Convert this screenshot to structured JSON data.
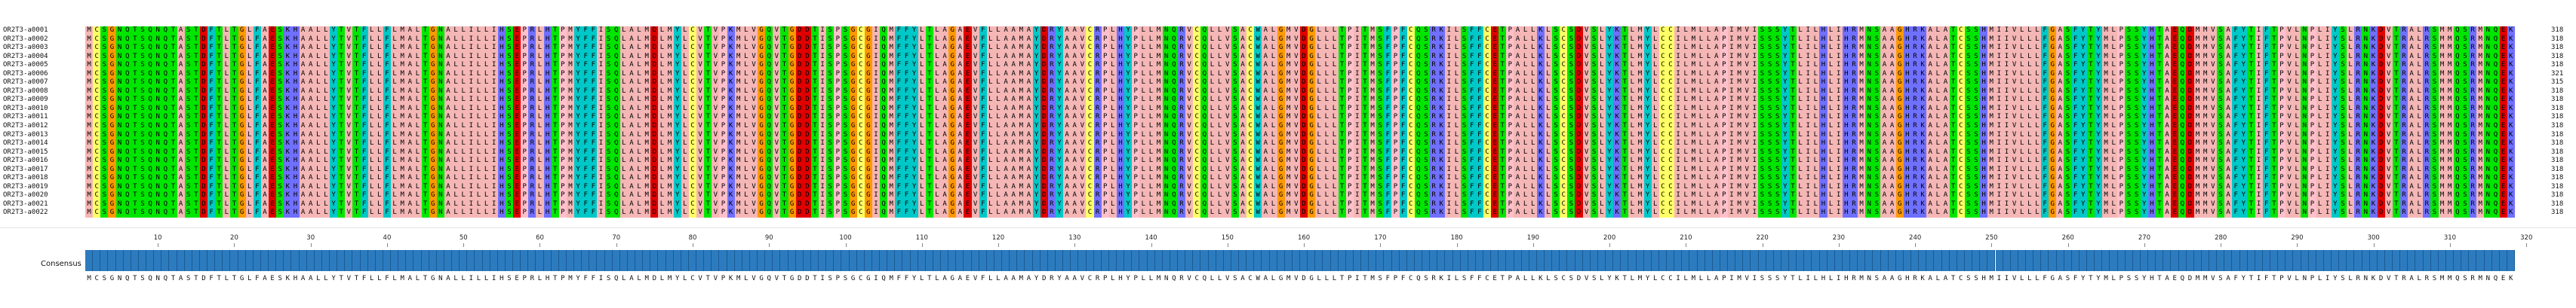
{
  "app": {
    "colors": {
      "hydrophobic": "#f5b6b6",
      "aromatic": "#00c8c8",
      "acidic": "#e00000",
      "basic": "#7070ff",
      "polar": "#00e600",
      "cysteine": "#ffff66",
      "glycine": "#ff9900",
      "proline": "#ffc0cb",
      "gap": "#ffffff",
      "bar": "#2c7bbf"
    }
  },
  "alignment": {
    "names": [
      "OR2T3-a0001",
      "OR2T3-a0002",
      "OR2T3-a0003",
      "OR2T3-a0004",
      "OR2T3-a0005",
      "OR2T3-a0006",
      "OR2T3-a0007",
      "OR2T3-a0008",
      "OR2T3-a0009",
      "OR2T3-a0010",
      "OR2T3-a0011",
      "OR2T3-a0012",
      "OR2T3-a0013",
      "OR2T3-a0014",
      "OR2T3-a0015",
      "OR2T3-a0016",
      "OR2T3-a0017",
      "OR2T3-a0018",
      "OR2T3-a0019",
      "OR2T3-a0020",
      "OR2T3-a0021",
      "OR2T3-a0022"
    ],
    "counts": [
      "318",
      "318",
      "318",
      "318",
      "318",
      "321",
      "315",
      "318",
      "318",
      "318",
      "318",
      "318",
      "318",
      "318",
      "318",
      "318",
      "318",
      "318",
      "318",
      "318",
      "318",
      "318"
    ],
    "consensus_label": "Consensus",
    "consensus": "MCSGNQTSQNQTASTDFTLTGLFAESKHAALLYTVTFLLFLMALTGNALLILLIHSEPRLHTPMYFFISQLALMDLMYLCVTVPKMLVGQVTGDDTISPSGCGIQMFFYLTLAGAEVFLLAAMAYDRYAAVCRPLHYPLLMNQRVCQLLVSACWALGMVDGLLLTPITMSFPFCQSRKILSFFCETPALLKLSCSDVSLYKTLMYLCCILMLLAPIMVISSSYTLILHLIHRMNSAAGHRKALATCSSHMIIVLLLFGASFYTYMLPSSYHTAEQDMMVSAFYTIFTPVLNPLIYSLRNKDVTRALRSMMQSRMNQEK",
    "ruler": [
      "10",
      "20",
      "30",
      "40",
      "50",
      "60",
      "70",
      "80",
      "90",
      "100",
      "110",
      "120",
      "130",
      "140",
      "150",
      "160",
      "170",
      "180",
      "190",
      "200",
      "210",
      "220",
      "230",
      "240",
      "250",
      "260",
      "270",
      "280",
      "290",
      "300",
      "310",
      "320"
    ]
  }
}
